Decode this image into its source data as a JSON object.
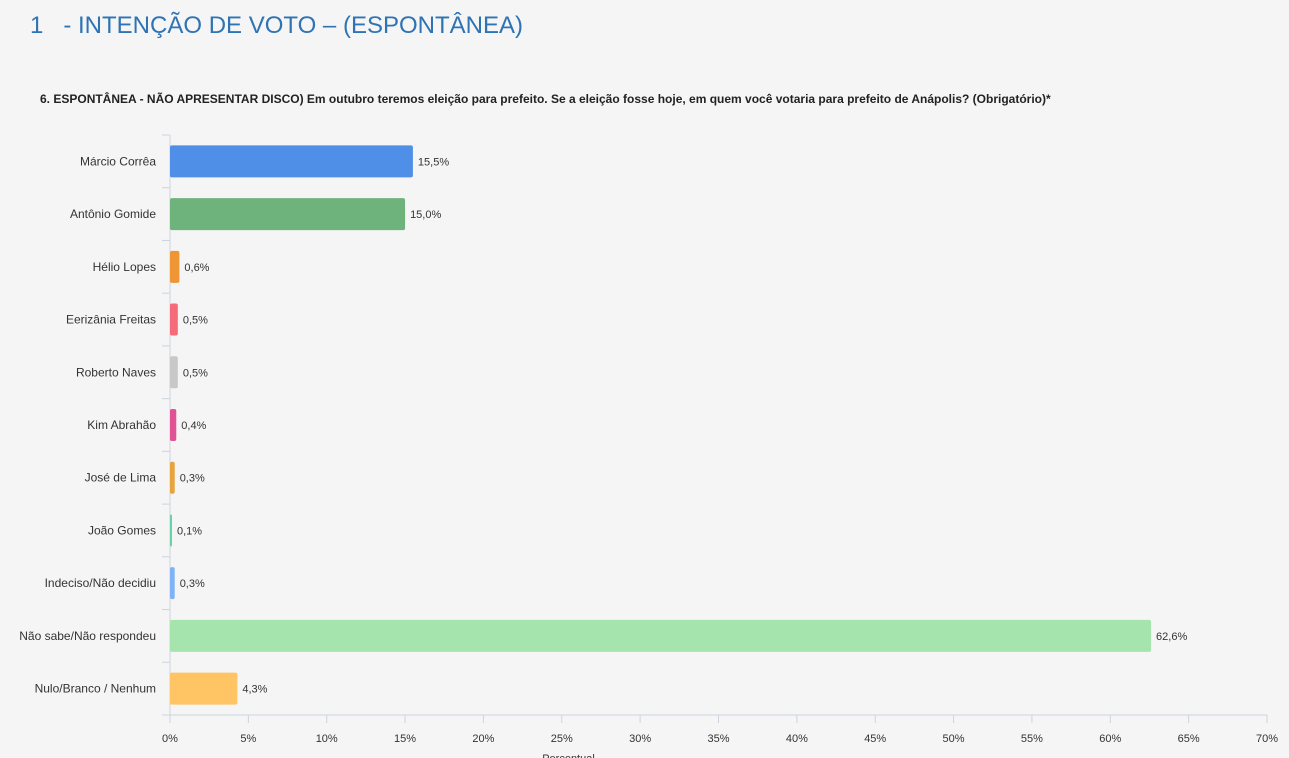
{
  "header": {
    "section_title": "1   - INTENÇÃO DE VOTO – (ESPONTÂNEA)",
    "question": "6. ESPONTÂNEA - NÃO APRESENTAR DISCO) Em outubro teremos eleição para prefeito. Se a eleição fosse hoje, em quem você votaria para prefeito de Anápolis? (Obrigatório)*"
  },
  "chart_data": {
    "type": "bar",
    "orientation": "horizontal",
    "title": "6. ESPONTÂNEA - NÃO APRESENTAR DISCO) Em outubro teremos eleição para prefeito. Se a eleição fosse hoje, em quem você votaria para prefeito de Anápolis? (Obrigatório)*",
    "xlabel": "Percentual",
    "ylabel": "",
    "xlim": [
      0,
      70
    ],
    "x_ticks": [
      "0%",
      "5%",
      "10%",
      "15%",
      "20%",
      "25%",
      "30%",
      "35%",
      "40%",
      "45%",
      "50%",
      "55%",
      "60%",
      "65%",
      "70%"
    ],
    "grid": false,
    "legend": "none",
    "categories": [
      "Márcio Corrêa",
      "Antônio Gomide",
      "Hélio Lopes",
      "Eerizânia Freitas",
      "Roberto Naves",
      "Kim Abrahão",
      "José de Lima",
      "João Gomes",
      "Indeciso/Não decidiu",
      "Não sabe/Não respondeu",
      "Nulo/Branco / Nenhum"
    ],
    "values": [
      15.5,
      15.0,
      0.6,
      0.5,
      0.5,
      0.4,
      0.3,
      0.1,
      0.3,
      62.6,
      4.3
    ],
    "value_labels": [
      "15,5%",
      "15,0%",
      "0,6%",
      "0,5%",
      "0,5%",
      "0,4%",
      "0,3%",
      "0,1%",
      "0,3%",
      "62,6%",
      "4,3%"
    ],
    "colors": [
      "#4f8fe8",
      "#6db37b",
      "#ee9535",
      "#f56b79",
      "#c8c8c8",
      "#e05294",
      "#e8a43c",
      "#68d1a8",
      "#7fb3f5",
      "#a5e5ad",
      "#ffc565"
    ]
  }
}
